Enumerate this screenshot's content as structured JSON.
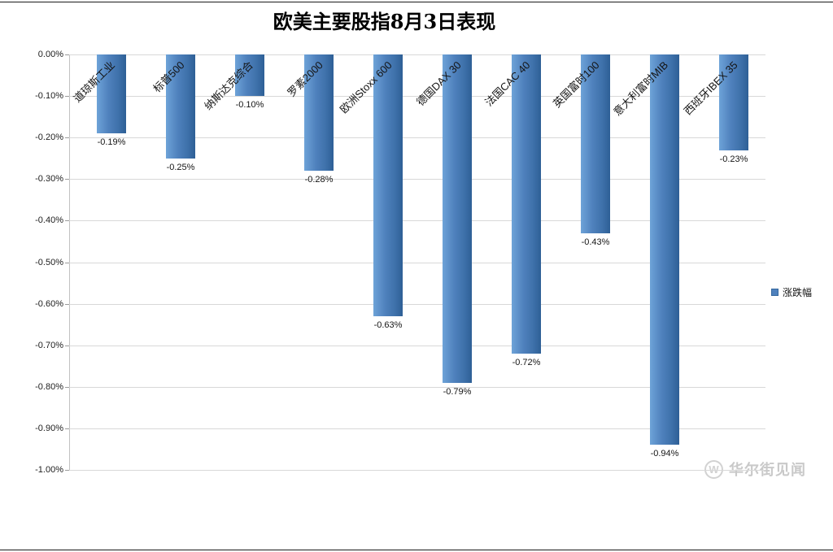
{
  "title": "欧美主要股指8月3日表现",
  "legend": {
    "label": "涨跌幅",
    "color": "#4f81bd"
  },
  "watermark": {
    "logo_letter": "W",
    "text": "华尔街见闻"
  },
  "chart_data": {
    "type": "bar",
    "title": "欧美主要股指8月3日表现",
    "categories": [
      "道琼斯工业",
      "标普500",
      "纳斯达克综合",
      "罗素2000",
      "欧洲Stoxx 600",
      "德国DAX 30",
      "法国CAC 40",
      "英国富时100",
      "意大利富时MIB",
      "西班牙IBEX 35"
    ],
    "series": [
      {
        "name": "涨跌幅",
        "values": [
          -0.19,
          -0.25,
          -0.1,
          -0.28,
          -0.63,
          -0.79,
          -0.72,
          -0.43,
          -0.94,
          -0.23
        ]
      }
    ],
    "data_labels": [
      "-0.19%",
      "-0.25%",
      "-0.10%",
      "-0.28%",
      "-0.63%",
      "-0.79%",
      "-0.72%",
      "-0.43%",
      "-0.94%",
      "-0.23%"
    ],
    "xlabel": "",
    "ylabel": "",
    "ylim": [
      -1.0,
      0.0
    ],
    "ytick_step": 0.1,
    "ytick_labels": [
      "0.00%",
      "-0.10%",
      "-0.20%",
      "-0.30%",
      "-0.40%",
      "-0.50%",
      "-0.60%",
      "-0.70%",
      "-0.80%",
      "-0.90%",
      "-1.00%"
    ],
    "grid": true,
    "legend_position": "right",
    "bar_color": "#4f81bd"
  }
}
